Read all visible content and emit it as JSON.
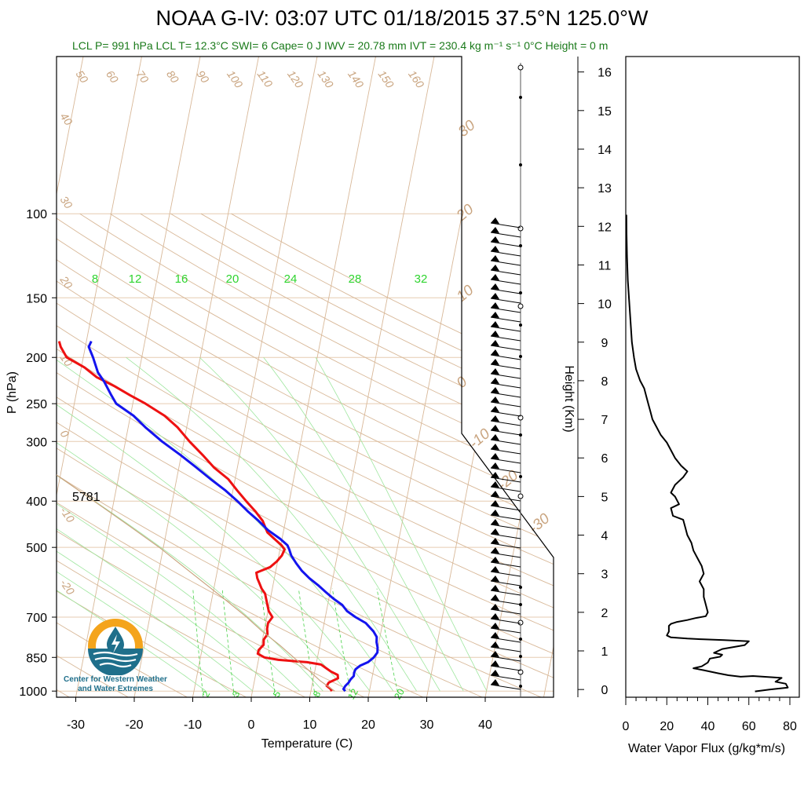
{
  "header": {
    "title": "NOAA G-IV: 03:07 UTC 01/18/2015  37.5°N 125.0°W",
    "subtitle": "LCL P= 991 hPa  LCL T= 12.3°C  SWI= 6  Cape= 0 J  IWV = 20.78 mm  IVT = 230.4 kg m⁻¹ s⁻¹  0°C Height = 0 m"
  },
  "logo": {
    "line1": "Center for Western Weather",
    "line2": "and Water Extremes"
  },
  "colors": {
    "temperature": "#ee1111",
    "dewpoint": "#1414ee",
    "parcel": "#c9a47f",
    "subtitle": "#1a7a1a",
    "logo_teal": "#1f6f8b",
    "logo_orange": "#f4a41c"
  },
  "chart_data": [
    {
      "type": "line",
      "subtype": "skew-t log-p",
      "title": "",
      "xlabel": "Temperature (C)",
      "ylabel": "P (hPa)",
      "xlim": [
        -34,
        48
      ],
      "ylim": [
        1030,
        100
      ],
      "x_ticks": [
        "-30",
        "-20",
        "-10",
        "0",
        "10",
        "20",
        "30",
        "40"
      ],
      "y_ticks": [
        "100",
        "150",
        "200",
        "250",
        "300",
        "400",
        "500",
        "700",
        "850",
        "1000"
      ],
      "y_tick_values": [
        100,
        150,
        200,
        250,
        300,
        400,
        500,
        700,
        850,
        1000
      ],
      "annotation_500": "5781",
      "isotherm_labels": [
        "50",
        "60",
        "70",
        "80",
        "90",
        "100",
        "110",
        "120",
        "130",
        "140",
        "150",
        "160"
      ],
      "isotherm_left_labels": [
        "40",
        "30",
        "20",
        "10",
        "0",
        "-10",
        "-20"
      ],
      "dry_adiabat_right_labels": [
        "30",
        "20",
        "10",
        "0",
        "-10",
        "-20",
        "-30"
      ],
      "moist_adiabat_labels": [
        "8",
        "12",
        "16",
        "20",
        "24",
        "28",
        "32"
      ],
      "mixing_ratio_labels": [
        "2",
        "3",
        "5",
        "8",
        "12",
        "20"
      ],
      "series": [
        {
          "name": "",
          "color": "#ee1111",
          "points": [
            [
              1000,
              13.5
            ],
            [
              990,
              13.2
            ],
            [
              975,
              12.4
            ],
            [
              960,
              12.6
            ],
            [
              940,
              14.0
            ],
            [
              925,
              13.8
            ],
            [
              910,
              12.5
            ],
            [
              895,
              11.5
            ],
            [
              880,
              10.5
            ],
            [
              870,
              8.0
            ],
            [
              860,
              3.0
            ],
            [
              850,
              0.5
            ],
            [
              835,
              -0.8
            ],
            [
              820,
              -0.8
            ],
            [
              800,
              -0.2
            ],
            [
              780,
              -0.4
            ],
            [
              760,
              0.0
            ],
            [
              740,
              -0.3
            ],
            [
              720,
              -0.4
            ],
            [
              700,
              0.1
            ],
            [
              680,
              -0.8
            ],
            [
              660,
              -1.3
            ],
            [
              640,
              -1.8
            ],
            [
              625,
              -2.2
            ],
            [
              610,
              -3.0
            ],
            [
              595,
              -3.6
            ],
            [
              580,
              -4.2
            ],
            [
              565,
              -4.6
            ],
            [
              550,
              -2.5
            ],
            [
              535,
              -1.6
            ],
            [
              520,
              -1.0
            ],
            [
              505,
              -0.8
            ],
            [
              495,
              -1.5
            ],
            [
              480,
              -3.0
            ],
            [
              465,
              -4.5
            ],
            [
              440,
              -5.8
            ],
            [
              420,
              -7.5
            ],
            [
              400,
              -9.5
            ],
            [
              380,
              -11.5
            ],
            [
              360,
              -13.5
            ],
            [
              340,
              -16.5
            ],
            [
              320,
              -19.0
            ],
            [
              300,
              -21.8
            ],
            [
              280,
              -24.5
            ],
            [
              265,
              -27.2
            ],
            [
              250,
              -31.0
            ],
            [
              240,
              -34.0
            ],
            [
              230,
              -37.0
            ],
            [
              220,
              -40.5
            ],
            [
              210,
              -43.0
            ],
            [
              200,
              -46.5
            ],
            [
              190,
              -48.0
            ],
            [
              185,
              -48.5
            ]
          ]
        },
        {
          "name": "",
          "color": "#1414ee",
          "points": [
            [
              1000,
              15.8
            ],
            [
              990,
              15.4
            ],
            [
              975,
              15.6
            ],
            [
              960,
              16.0
            ],
            [
              945,
              16.2
            ],
            [
              930,
              16.6
            ],
            [
              915,
              16.5
            ],
            [
              900,
              16.6
            ],
            [
              885,
              17.2
            ],
            [
              870,
              18.4
            ],
            [
              850,
              19.2
            ],
            [
              830,
              19.6
            ],
            [
              810,
              19.4
            ],
            [
              790,
              19.0
            ],
            [
              770,
              18.8
            ],
            [
              750,
              18.0
            ],
            [
              720,
              16.3
            ],
            [
              700,
              14.3
            ],
            [
              680,
              12.6
            ],
            [
              660,
              11.5
            ],
            [
              640,
              9.7
            ],
            [
              620,
              8.1
            ],
            [
              600,
              6.5
            ],
            [
              580,
              4.7
            ],
            [
              560,
              3.1
            ],
            [
              540,
              1.8
            ],
            [
              520,
              0.6
            ],
            [
              505,
              0.0
            ],
            [
              495,
              -0.5
            ],
            [
              480,
              -2.0
            ],
            [
              460,
              -4.5
            ],
            [
              440,
              -6.5
            ],
            [
              420,
              -8.8
            ],
            [
              400,
              -11.0
            ],
            [
              380,
              -13.5
            ],
            [
              360,
              -16.5
            ],
            [
              340,
              -19.5
            ],
            [
              320,
              -22.8
            ],
            [
              300,
              -26.5
            ],
            [
              280,
              -30.0
            ],
            [
              265,
              -32.5
            ],
            [
              250,
              -36.0
            ],
            [
              240,
              -37.2
            ],
            [
              225,
              -39.0
            ],
            [
              215,
              -40.5
            ],
            [
              200,
              -42.0
            ],
            [
              190,
              -43.2
            ],
            [
              185,
              -43.0
            ]
          ]
        },
        {
          "name": "",
          "color": "#c9a47f",
          "points": [
            [
              1000,
              14.0
            ],
            [
              950,
              11.0
            ],
            [
              900,
              8.4
            ],
            [
              850,
              5.5
            ],
            [
              800,
              2.5
            ],
            [
              750,
              -1.0
            ],
            [
              700,
              -4.3
            ],
            [
              650,
              -8.2
            ],
            [
              600,
              -12.5
            ],
            [
              550,
              -17.2
            ],
            [
              500,
              -22.3
            ],
            [
              450,
              -28.5
            ],
            [
              400,
              -35.5
            ],
            [
              350,
              -43.5
            ],
            [
              300,
              -52.5
            ],
            [
              250,
              -62.0
            ],
            [
              220,
              -68.0
            ],
            [
              200,
              -72.0
            ],
            [
              100,
              -82.0
            ]
          ]
        }
      ]
    },
    {
      "type": "line",
      "title": "",
      "xlabel": "Water Vapor Flux (g/kg*m/s)",
      "ylabel": "Height (Km)",
      "xlim": [
        0,
        80
      ],
      "ylim": [
        -0.2,
        16.4
      ],
      "x_ticks": [
        "0",
        "20",
        "40",
        "60",
        "80"
      ],
      "y_ticks": [
        "0",
        "1",
        "2",
        "3",
        "4",
        "5",
        "6",
        "7",
        "8",
        "9",
        "10",
        "11",
        "12",
        "13",
        "14",
        "15",
        "16"
      ],
      "series": [
        {
          "name": "",
          "color": "#000000",
          "points": [
            [
              63,
              -0.05
            ],
            [
              70,
              0.0
            ],
            [
              79,
              0.05
            ],
            [
              78,
              0.15
            ],
            [
              73,
              0.2
            ],
            [
              76,
              0.3
            ],
            [
              62,
              0.35
            ],
            [
              56,
              0.33
            ],
            [
              50,
              0.37
            ],
            [
              45,
              0.42
            ],
            [
              38,
              0.5
            ],
            [
              33,
              0.55
            ],
            [
              37,
              0.6
            ],
            [
              40,
              0.7
            ],
            [
              41,
              0.8
            ],
            [
              46,
              0.85
            ],
            [
              47,
              0.9
            ],
            [
              43,
              0.95
            ],
            [
              47,
              1.05
            ],
            [
              58,
              1.15
            ],
            [
              60,
              1.25
            ],
            [
              48,
              1.28
            ],
            [
              38,
              1.3
            ],
            [
              30,
              1.32
            ],
            [
              22,
              1.35
            ],
            [
              20,
              1.4
            ],
            [
              21,
              1.5
            ],
            [
              21,
              1.6
            ],
            [
              21,
              1.65
            ],
            [
              22,
              1.7
            ],
            [
              25,
              1.75
            ],
            [
              30,
              1.8
            ],
            [
              34,
              1.85
            ],
            [
              39,
              1.9
            ],
            [
              40,
              2.0
            ],
            [
              39,
              2.2
            ],
            [
              38,
              2.4
            ],
            [
              38,
              2.6
            ],
            [
              36,
              2.8
            ],
            [
              38,
              3.0
            ],
            [
              37,
              3.2
            ],
            [
              35,
              3.4
            ],
            [
              33,
              3.6
            ],
            [
              32,
              3.8
            ],
            [
              30,
              4.0
            ],
            [
              29,
              4.2
            ],
            [
              28,
              4.4
            ],
            [
              23,
              4.5
            ],
            [
              22,
              4.7
            ],
            [
              26,
              4.8
            ],
            [
              24,
              5.0
            ],
            [
              22,
              5.1
            ],
            [
              24,
              5.3
            ],
            [
              28,
              5.5
            ],
            [
              30,
              5.65
            ],
            [
              27,
              5.8
            ],
            [
              24,
              6.0
            ],
            [
              22,
              6.2
            ],
            [
              20,
              6.4
            ],
            [
              17,
              6.6
            ],
            [
              15,
              6.8
            ],
            [
              13,
              7.0
            ],
            [
              12,
              7.2
            ],
            [
              11,
              7.4
            ],
            [
              10,
              7.6
            ],
            [
              9,
              7.8
            ],
            [
              7,
              8.0
            ],
            [
              5,
              8.3
            ],
            [
              4,
              8.6
            ],
            [
              3,
              9.0
            ],
            [
              2.5,
              9.4
            ],
            [
              2,
              9.8
            ],
            [
              1.5,
              10.2
            ],
            [
              1,
              10.6
            ],
            [
              0.6,
              11.2
            ],
            [
              0.4,
              11.8
            ],
            [
              0.3,
              12.3
            ]
          ]
        }
      ]
    }
  ]
}
